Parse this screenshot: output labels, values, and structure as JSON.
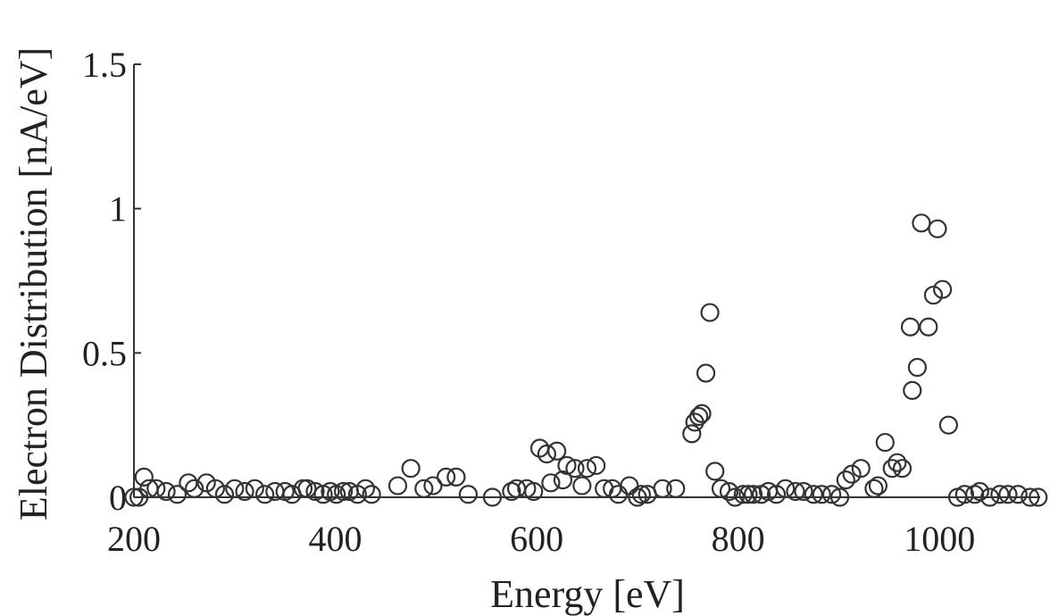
{
  "chart_data": {
    "type": "scatter",
    "title": "",
    "xlabel": "Energy [eV]",
    "ylabel": "Electron Distribution [nA/eV]",
    "xlim": [
      200,
      1100
    ],
    "ylim": [
      0,
      1.5
    ],
    "xticks": [
      200,
      400,
      600,
      800,
      1000
    ],
    "xtick_labels": [
      "200",
      "400",
      "600",
      "800",
      "1000"
    ],
    "yticks": [
      0,
      0.5,
      1,
      1.5
    ],
    "ytick_labels": [
      "0",
      "0.5",
      "1",
      "1.5"
    ],
    "grid": false,
    "marker": "open-circle",
    "series": [
      {
        "x": [
          200,
          205,
          210,
          215,
          222,
          232,
          243,
          254,
          260,
          272,
          281,
          290,
          300,
          310,
          320,
          330,
          340,
          350,
          357,
          368,
          372,
          380,
          388,
          395,
          401,
          408,
          414,
          422,
          430,
          436,
          462,
          475,
          488,
          497,
          510,
          520,
          532,
          556,
          575,
          580,
          590,
          597,
          603,
          610,
          614,
          620,
          626,
          630,
          638,
          645,
          650,
          659,
          667,
          675,
          681,
          692,
          700,
          704,
          710,
          725,
          738,
          754,
          757,
          761,
          764,
          768,
          772,
          777,
          783,
          791,
          797,
          805,
          810,
          815,
          823,
          830,
          838,
          847,
          857,
          865,
          875,
          883,
          893,
          901,
          907,
          913,
          922,
          935,
          939,
          946,
          953,
          958,
          963,
          971,
          973,
          978,
          982,
          989,
          994,
          998,
          1003,
          1009,
          1018,
          1025,
          1035,
          1040,
          1050,
          1060,
          1068,
          1078,
          1090,
          1098
        ],
        "y": [
          0,
          0,
          0.07,
          0.03,
          0.03,
          0.02,
          0.01,
          0.05,
          0.03,
          0.05,
          0.03,
          0.01,
          0.03,
          0.02,
          0.03,
          0.01,
          0.02,
          0.02,
          0.01,
          0.03,
          0.03,
          0.02,
          0.01,
          0.02,
          0.01,
          0.02,
          0.02,
          0.01,
          0.03,
          0.01,
          0.04,
          0.1,
          0.03,
          0.04,
          0.07,
          0.07,
          0.01,
          0,
          0.02,
          0.03,
          0.03,
          0.02,
          0.17,
          0.15,
          0.05,
          0.16,
          0.06,
          0.11,
          0.1,
          0.04,
          0.1,
          0.11,
          0.03,
          0.03,
          0.01,
          0.04,
          0,
          0.01,
          0.01,
          0.03,
          0.03,
          0.22,
          0.26,
          0.28,
          0.29,
          0.43,
          0.64,
          0.09,
          0.03,
          0.02,
          0,
          0.01,
          0.01,
          0.01,
          0.01,
          0.02,
          0.01,
          0.03,
          0.02,
          0.02,
          0.01,
          0.01,
          0.01,
          0,
          0.06,
          0.08,
          0.1,
          0.03,
          0.04,
          0.19,
          0.1,
          0.12,
          0.1,
          0.59,
          0.37,
          0.45,
          0.95,
          0.59,
          0.7,
          0.93,
          0.72,
          0.25,
          0,
          0.01,
          0.01,
          0.02,
          0,
          0.01,
          0.01,
          0.01,
          0,
          0
        ]
      }
    ]
  }
}
